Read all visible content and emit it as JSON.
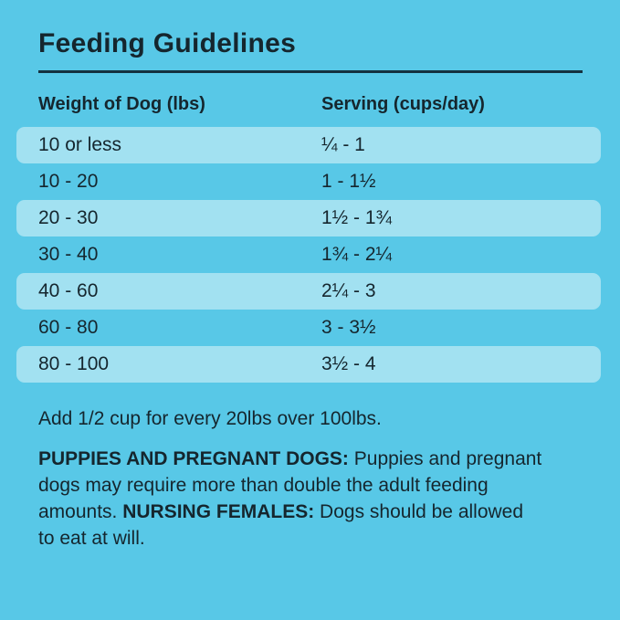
{
  "theme": {
    "bg": "#58C8E7",
    "stripe": "#A2E1F1",
    "ink": "#15262E",
    "rule": "#143240"
  },
  "title": "Feeding Guidelines",
  "table": {
    "headers": {
      "weight": "Weight of Dog (lbs)",
      "serving": "Serving (cups/day)"
    },
    "rows": [
      {
        "weight": "10 or less",
        "serving": "¼ - 1"
      },
      {
        "weight": "10 - 20",
        "serving": "1 - 1½"
      },
      {
        "weight": "20 - 30",
        "serving": "1½ - 1¾"
      },
      {
        "weight": "30 - 40",
        "serving": "1¾ - 2¼"
      },
      {
        "weight": "40 - 60",
        "serving": "2¼ - 3"
      },
      {
        "weight": "60 - 80",
        "serving": "3 - 3½"
      },
      {
        "weight": "80 - 100",
        "serving": "3½ - 4"
      }
    ]
  },
  "notes": {
    "over_100": "Add 1/2 cup for every 20lbs over 100lbs."
  },
  "special_note": {
    "line1_bold": "PUPPIES AND PREGNANT DOGS:",
    "line1_rest": " Puppies and pregnant",
    "line2": "dogs may require more than double the adult feeding",
    "line3_pre": "amounts. ",
    "line3_bold": "NURSING FEMALES:",
    "line3_rest": " Dogs should be allowed",
    "line4": "to eat at will."
  }
}
